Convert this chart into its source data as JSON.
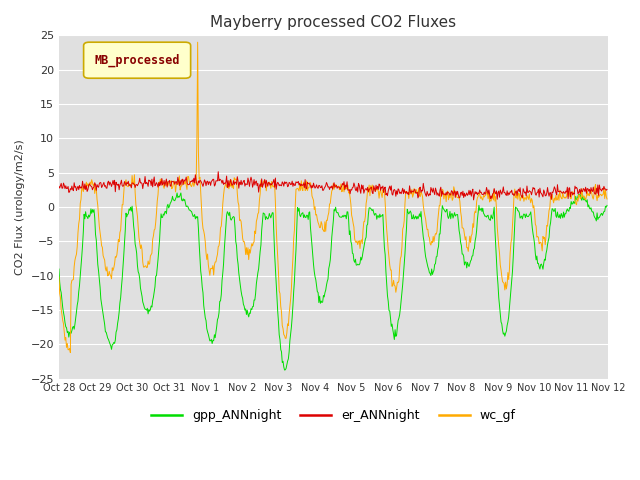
{
  "title": "Mayberry processed CO2 Fluxes",
  "ylabel": "CO2 Flux (urology/m2/s)",
  "ylim": [
    -25,
    25
  ],
  "yticks": [
    -25,
    -20,
    -15,
    -10,
    -5,
    0,
    5,
    10,
    15,
    20,
    25
  ],
  "bg_color": "#e0e0e0",
  "line_green": "#00dd00",
  "line_red": "#dd0000",
  "line_orange": "#ffaa00",
  "legend_box_label": "MB_processed",
  "legend_box_facecolor": "#ffffcc",
  "legend_box_edgecolor": "#ccaa00",
  "legend_box_textcolor": "#880000",
  "seed": 42
}
